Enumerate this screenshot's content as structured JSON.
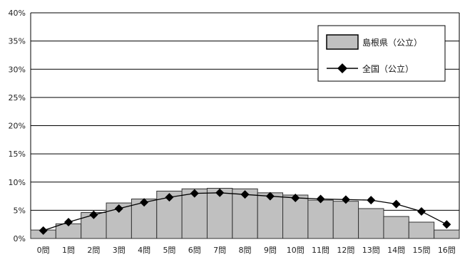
{
  "chart_data": {
    "type": "bar",
    "categories": [
      "0問",
      "1問",
      "2問",
      "3問",
      "4問",
      "5問",
      "6問",
      "7問",
      "8問",
      "9問",
      "10問",
      "11問",
      "12問",
      "13問",
      "14問",
      "15問",
      "16問"
    ],
    "series": [
      {
        "name": "島根県（公立）",
        "kind": "bar",
        "values": [
          1.5,
          2.6,
          4.6,
          6.3,
          7.0,
          8.4,
          8.8,
          8.9,
          8.8,
          8.1,
          7.7,
          6.8,
          6.6,
          5.3,
          3.9,
          2.9,
          1.5
        ]
      },
      {
        "name": "全国（公立）",
        "kind": "line",
        "values": [
          1.4,
          2.9,
          4.2,
          5.3,
          6.4,
          7.3,
          8.0,
          8.1,
          7.8,
          7.5,
          7.2,
          7.0,
          6.9,
          6.8,
          6.1,
          4.8,
          2.5
        ]
      }
    ],
    "y_ticks": [
      "0%",
      "5%",
      "10%",
      "15%",
      "20%",
      "25%",
      "30%",
      "35%",
      "40%"
    ],
    "ylim": [
      0,
      40
    ],
    "grid": true,
    "legend_position": "top-right",
    "colors": {
      "bar_fill": "#c0c0c0",
      "bar_stroke": "#333333",
      "line": "#000000",
      "marker": "#000000",
      "grid": "#000000"
    }
  }
}
